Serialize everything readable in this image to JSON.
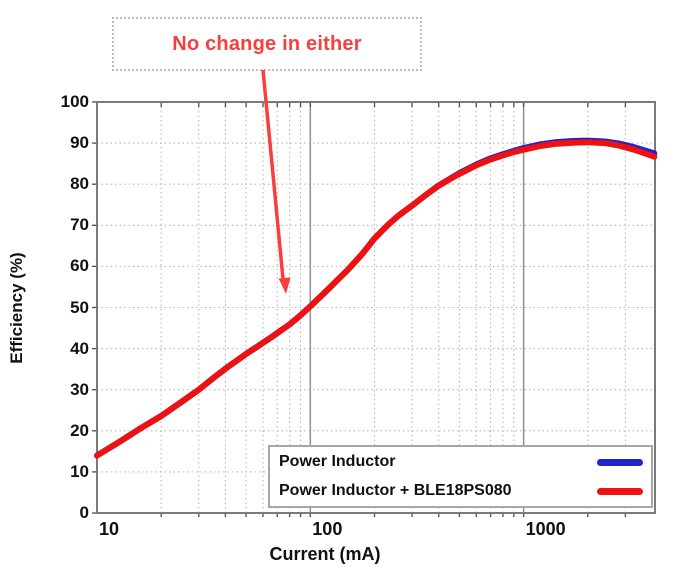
{
  "annotation": {
    "text": "No change in either"
  },
  "colors": {
    "curve_blue": "#2222cc",
    "curve_red": "#ee1111",
    "annotation_red": "#f83e3e",
    "grid_minor": "#b8b8b8",
    "grid_decade": "#909090",
    "frame": "#7a7a7a",
    "tick": "#4d4d4d"
  },
  "chart_data": {
    "type": "line",
    "title": "",
    "xlabel": "Current (mA)",
    "ylabel": "Efficiency (%)",
    "xscale": "log",
    "xlim": [
      10,
      4130
    ],
    "ylim": [
      0,
      100
    ],
    "grid": "dotted minor gridlines, solid gray decade lines at 100 and 1000",
    "legend_position": "bottom-right",
    "xticks": [
      {
        "value": 10,
        "label": "10"
      },
      {
        "value": 100,
        "label": "100"
      },
      {
        "value": 1000,
        "label": "1000"
      }
    ],
    "yticks": [
      {
        "value": 0,
        "label": "0"
      },
      {
        "value": 10,
        "label": "10"
      },
      {
        "value": 20,
        "label": "20"
      },
      {
        "value": 30,
        "label": "30"
      },
      {
        "value": 40,
        "label": "40"
      },
      {
        "value": 50,
        "label": "50"
      },
      {
        "value": 60,
        "label": "60"
      },
      {
        "value": 70,
        "label": "70"
      },
      {
        "value": 80,
        "label": "80"
      },
      {
        "value": 90,
        "label": "90"
      },
      {
        "value": 100,
        "label": "100"
      }
    ],
    "series": [
      {
        "name": "Power Inductor",
        "color": "#2222cc",
        "points": [
          [
            10,
            14
          ],
          [
            13,
            17.6
          ],
          [
            16,
            20.6
          ],
          [
            20,
            23.6
          ],
          [
            25,
            27.1
          ],
          [
            30,
            30
          ],
          [
            35,
            32.8
          ],
          [
            40,
            35.1
          ],
          [
            45,
            37
          ],
          [
            50,
            38.7
          ],
          [
            55,
            40.1
          ],
          [
            60,
            41.4
          ],
          [
            65,
            42.6
          ],
          [
            70,
            43.8
          ],
          [
            80,
            45.9
          ],
          [
            90,
            48.1
          ],
          [
            100,
            50.3
          ],
          [
            115,
            53.3
          ],
          [
            130,
            56
          ],
          [
            150,
            59.2
          ],
          [
            175,
            63
          ],
          [
            200,
            66.8
          ],
          [
            230,
            70
          ],
          [
            260,
            72.4
          ],
          [
            300,
            74.8
          ],
          [
            350,
            77.5
          ],
          [
            400,
            79.7
          ],
          [
            450,
            81.3
          ],
          [
            500,
            82.7
          ],
          [
            600,
            84.8
          ],
          [
            700,
            86.3
          ],
          [
            800,
            87.3
          ],
          [
            900,
            88.1
          ],
          [
            1000,
            88.8
          ],
          [
            1200,
            89.7
          ],
          [
            1400,
            90.2
          ],
          [
            1700,
            90.5
          ],
          [
            2000,
            90.6
          ],
          [
            2400,
            90.4
          ],
          [
            2800,
            89.9
          ],
          [
            3300,
            89
          ],
          [
            3800,
            88
          ],
          [
            4100,
            87.5
          ]
        ]
      },
      {
        "name": "Power Inductor + BLE18PS080",
        "color": "#ee1111",
        "points": [
          [
            10,
            14
          ],
          [
            13,
            17.6
          ],
          [
            16,
            20.6
          ],
          [
            20,
            23.6
          ],
          [
            25,
            27.1
          ],
          [
            30,
            30
          ],
          [
            35,
            32.8
          ],
          [
            40,
            35.1
          ],
          [
            45,
            37
          ],
          [
            50,
            38.7
          ],
          [
            55,
            40.1
          ],
          [
            60,
            41.4
          ],
          [
            65,
            42.6
          ],
          [
            70,
            43.8
          ],
          [
            80,
            45.9
          ],
          [
            90,
            48.1
          ],
          [
            100,
            50.3
          ],
          [
            115,
            53.3
          ],
          [
            130,
            56
          ],
          [
            150,
            59.2
          ],
          [
            175,
            63
          ],
          [
            200,
            66.8
          ],
          [
            230,
            70
          ],
          [
            260,
            72.4
          ],
          [
            300,
            74.8
          ],
          [
            350,
            77.5
          ],
          [
            400,
            79.6
          ],
          [
            450,
            81.2
          ],
          [
            500,
            82.5
          ],
          [
            600,
            84.6
          ],
          [
            700,
            86
          ],
          [
            800,
            87
          ],
          [
            900,
            87.8
          ],
          [
            1000,
            88.4
          ],
          [
            1200,
            89.3
          ],
          [
            1400,
            89.8
          ],
          [
            1700,
            90.1
          ],
          [
            2000,
            90.2
          ],
          [
            2400,
            90
          ],
          [
            2800,
            89.4
          ],
          [
            3300,
            88.4
          ],
          [
            3800,
            87.3
          ],
          [
            4100,
            86.7
          ]
        ]
      }
    ]
  }
}
